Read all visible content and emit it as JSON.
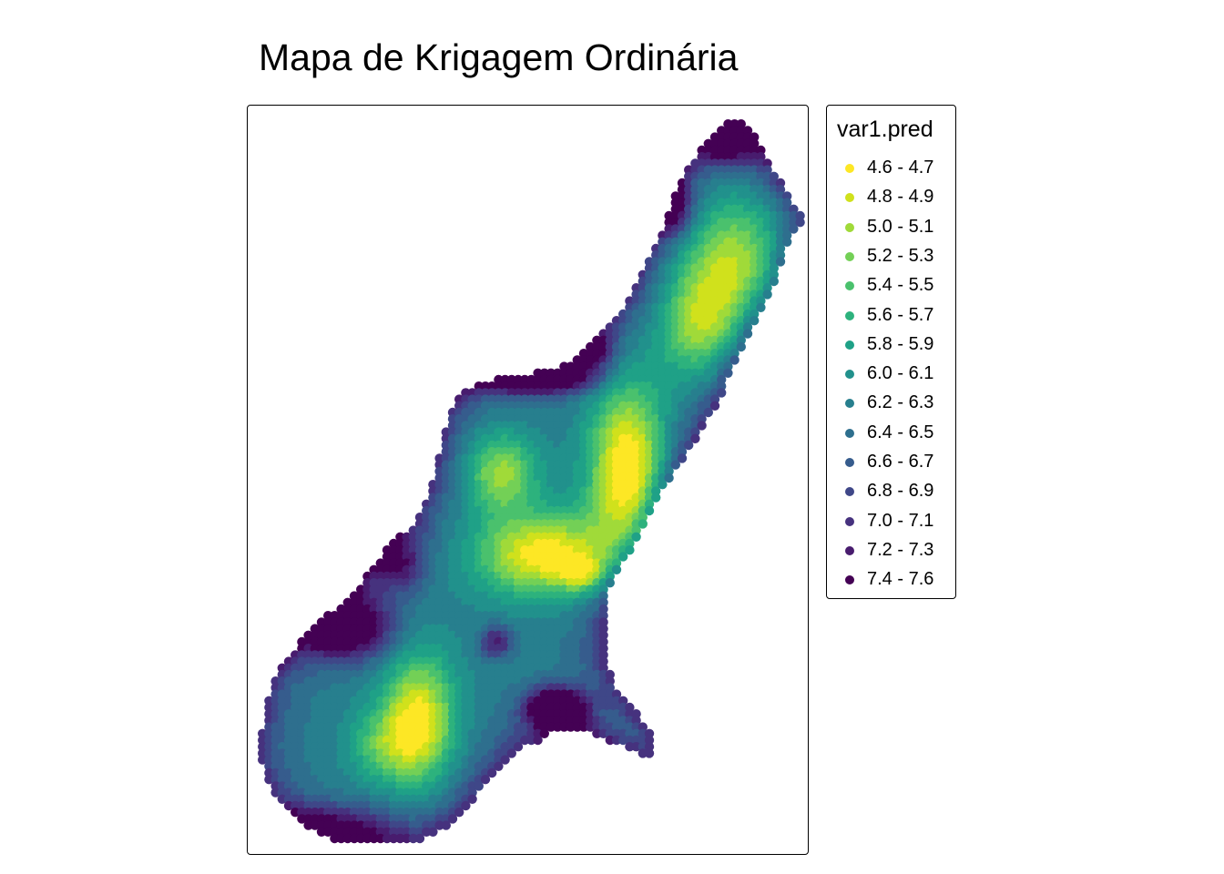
{
  "title": "Mapa de Krigagem Ordinária",
  "legend": {
    "title": "var1.pred",
    "items": [
      {
        "label": "4.6 - 4.7",
        "color": "#fde725"
      },
      {
        "label": "4.8 - 4.9",
        "color": "#d0e11c"
      },
      {
        "label": "5.0 - 5.1",
        "color": "#a0da39"
      },
      {
        "label": "5.2 - 5.3",
        "color": "#73d056"
      },
      {
        "label": "5.4 - 5.5",
        "color": "#4ac16d"
      },
      {
        "label": "5.6 - 5.7",
        "color": "#2db27d"
      },
      {
        "label": "5.8 - 5.9",
        "color": "#1fa187"
      },
      {
        "label": "6.0 - 6.1",
        "color": "#21918c"
      },
      {
        "label": "6.2 - 6.3",
        "color": "#277f8e"
      },
      {
        "label": "6.4 - 6.5",
        "color": "#2e6f8e"
      },
      {
        "label": "6.6 - 6.7",
        "color": "#365c8d"
      },
      {
        "label": "6.8 - 6.9",
        "color": "#3f4788"
      },
      {
        "label": "7.0 - 7.1",
        "color": "#46327e"
      },
      {
        "label": "7.2 - 7.3",
        "color": "#481c6e"
      },
      {
        "label": "7.4 - 7.6",
        "color": "#440154"
      }
    ]
  }
}
